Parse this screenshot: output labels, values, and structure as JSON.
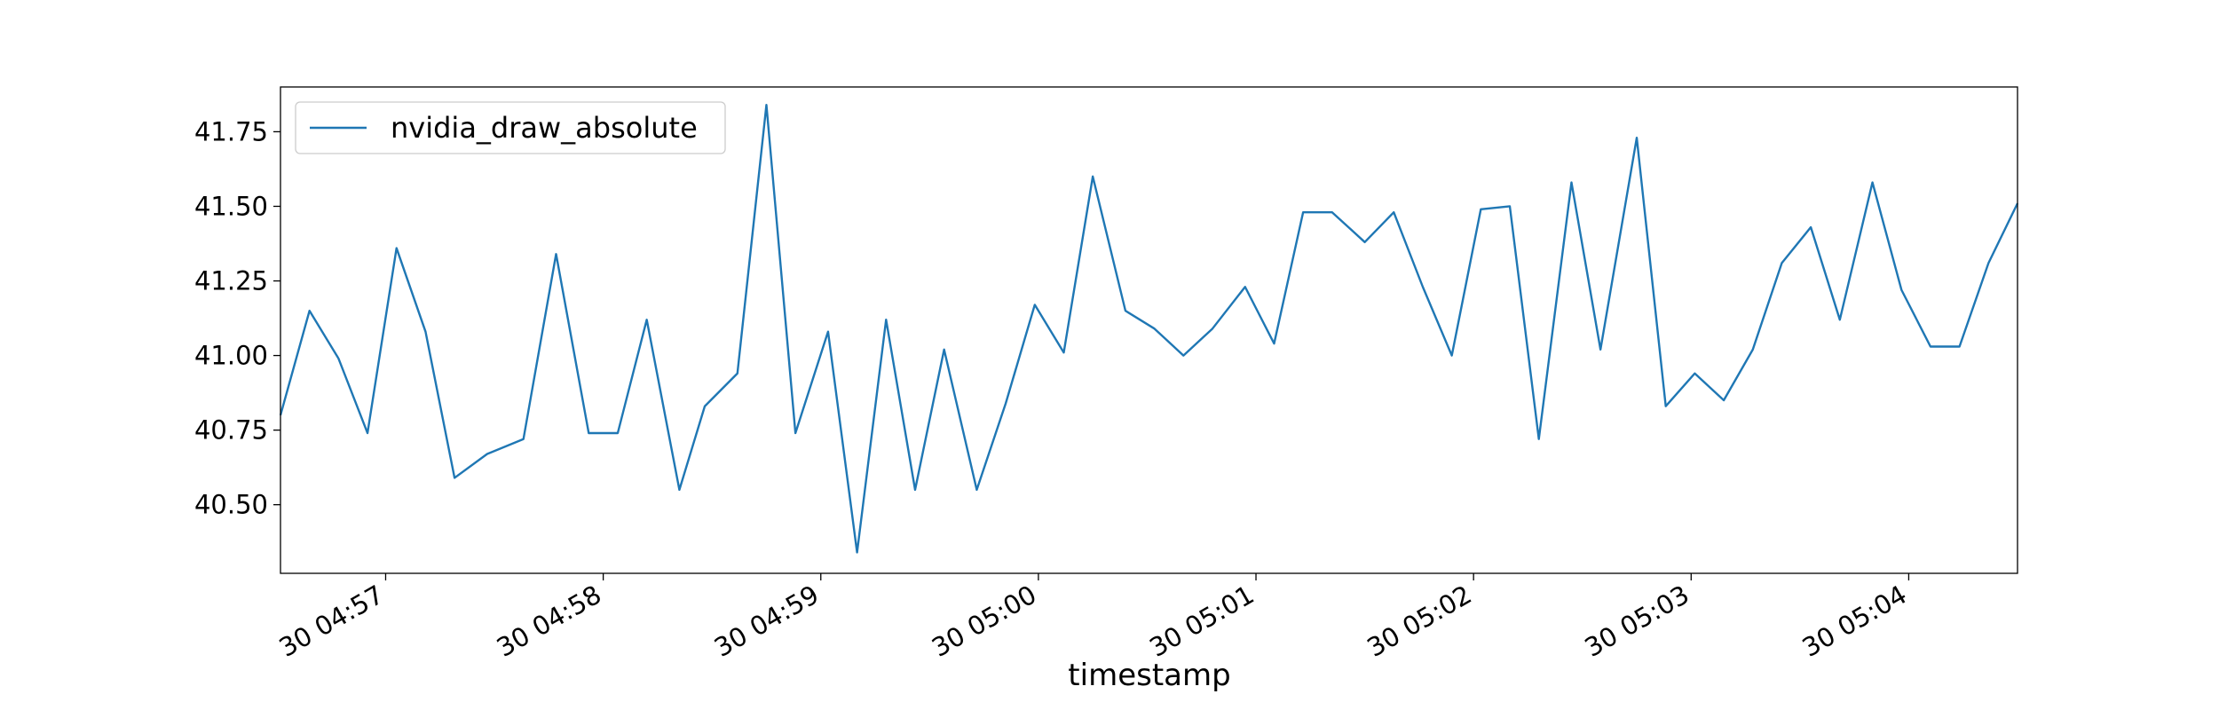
{
  "chart_data": {
    "type": "line",
    "x_label": "timestamp",
    "x": [
      "30 04:56:31",
      "30 04:56:39",
      "30 04:56:47",
      "30 04:56:55",
      "30 04:57:03",
      "30 04:57:11",
      "30 04:57:19",
      "30 04:57:28",
      "30 04:57:38",
      "30 04:57:47",
      "30 04:57:56",
      "30 04:58:04",
      "30 04:58:12",
      "30 04:58:21",
      "30 04:58:28",
      "30 04:58:37",
      "30 04:58:45",
      "30 04:58:53",
      "30 04:59:02",
      "30 04:59:10",
      "30 04:59:18",
      "30 04:59:26",
      "30 04:59:34",
      "30 04:59:43",
      "30 04:59:51",
      "30 04:59:59",
      "30 05:00:07",
      "30 05:00:15",
      "30 05:00:24",
      "30 05:00:32",
      "30 05:00:40",
      "30 05:00:48",
      "30 05:00:57",
      "30 05:01:05",
      "30 05:01:13",
      "30 05:01:21",
      "30 05:01:30",
      "30 05:01:38",
      "30 05:01:46",
      "30 05:01:54",
      "30 05:02:02",
      "30 05:02:10",
      "30 05:02:18",
      "30 05:02:27",
      "30 05:02:35",
      "30 05:02:45",
      "30 05:02:53",
      "30 05:03:01",
      "30 05:03:09",
      "30 05:03:17",
      "30 05:03:25",
      "30 05:03:33",
      "30 05:03:41",
      "30 05:03:50",
      "30 05:03:58",
      "30 05:04:06",
      "30 05:04:14",
      "30 05:04:22",
      "30 05:04:30"
    ],
    "series": [
      {
        "name": "nvidia_draw_absolute",
        "color": "#1f77b4",
        "values": [
          40.8,
          41.15,
          40.99,
          40.74,
          41.36,
          41.08,
          40.59,
          40.67,
          40.72,
          41.34,
          40.74,
          40.74,
          41.12,
          40.55,
          40.83,
          40.94,
          41.84,
          40.74,
          41.08,
          40.34,
          41.12,
          40.55,
          41.02,
          40.55,
          40.84,
          41.17,
          41.01,
          41.6,
          41.15,
          41.09,
          41.0,
          41.09,
          41.23,
          41.04,
          41.48,
          41.48,
          41.38,
          41.48,
          41.23,
          41.0,
          41.49,
          41.5,
          40.72,
          41.58,
          41.02,
          41.73,
          40.83,
          40.94,
          40.85,
          41.02,
          41.31,
          41.43,
          41.12,
          41.58,
          41.22,
          41.03,
          41.03,
          41.31,
          41.51
        ]
      }
    ],
    "xlim": [
      "30 04:56:31",
      "30 05:04:30"
    ],
    "xticks": [
      {
        "value": "30 04:57:00",
        "label": "30 04:57"
      },
      {
        "value": "30 04:58:00",
        "label": "30 04:58"
      },
      {
        "value": "30 04:59:00",
        "label": "30 04:59"
      },
      {
        "value": "30 05:00:00",
        "label": "30 05:00"
      },
      {
        "value": "30 05:01:00",
        "label": "30 05:01"
      },
      {
        "value": "30 05:02:00",
        "label": "30 05:02"
      },
      {
        "value": "30 05:03:00",
        "label": "30 05:03"
      },
      {
        "value": "30 05:04:00",
        "label": "30 05:04"
      }
    ],
    "ylim": [
      40.27,
      41.9
    ],
    "yticks": [
      {
        "value": 40.5,
        "label": "40.50"
      },
      {
        "value": 40.75,
        "label": "40.75"
      },
      {
        "value": 41.0,
        "label": "41.00"
      },
      {
        "value": 41.25,
        "label": "41.25"
      },
      {
        "value": 41.5,
        "label": "41.50"
      },
      {
        "value": 41.75,
        "label": "41.75"
      }
    ],
    "legend": "upper left"
  }
}
